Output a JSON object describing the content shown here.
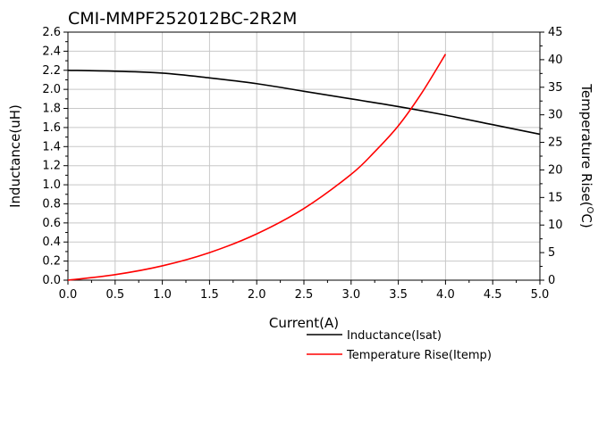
{
  "chart_data": {
    "type": "line",
    "title": "CMI-MMPF252012BC-2R2M",
    "xlabel": "Current(A)",
    "ylabel": "Inductance(uH)",
    "y2label_prefix": "Temperature Rise(",
    "y2label_sup": "O",
    "y2label_suffix": "C)",
    "xlim": [
      0,
      5
    ],
    "ylim": [
      0,
      2.6
    ],
    "y2lim": [
      0,
      45
    ],
    "x_ticks": [
      "0.0",
      "0.5",
      "1.0",
      "1.5",
      "2.0",
      "2.5",
      "3.0",
      "3.5",
      "4.0",
      "4.5",
      "5.0"
    ],
    "y_ticks": [
      "0.0",
      "0.2",
      "0.4",
      "0.6",
      "0.8",
      "1.0",
      "1.2",
      "1.4",
      "1.6",
      "1.8",
      "2.0",
      "2.2",
      "2.4",
      "2.6"
    ],
    "y2_ticks": [
      "0",
      "5",
      "10",
      "15",
      "20",
      "25",
      "30",
      "35",
      "40",
      "45"
    ],
    "grid": true,
    "legend_position": "bottom-right",
    "series": [
      {
        "name": "Inductance(Isat)",
        "axis": "left",
        "color": "#000000",
        "x": [
          0,
          0.5,
          1.0,
          1.5,
          2.0,
          2.5,
          3.0,
          3.5,
          4.0,
          4.5,
          5.0
        ],
        "y": [
          2.2,
          2.19,
          2.17,
          2.12,
          2.06,
          1.98,
          1.9,
          1.82,
          1.73,
          1.63,
          1.53
        ]
      },
      {
        "name": "Temperature Rise(Itemp)",
        "axis": "right",
        "color": "#ff0000",
        "x": [
          0,
          0.5,
          1.0,
          1.5,
          2.0,
          2.5,
          3.0,
          3.25,
          3.5,
          3.75,
          4.0
        ],
        "y": [
          0,
          1.0,
          2.6,
          5.0,
          8.4,
          13.0,
          19.2,
          23.3,
          28.0,
          34.0,
          41.0
        ]
      }
    ]
  }
}
